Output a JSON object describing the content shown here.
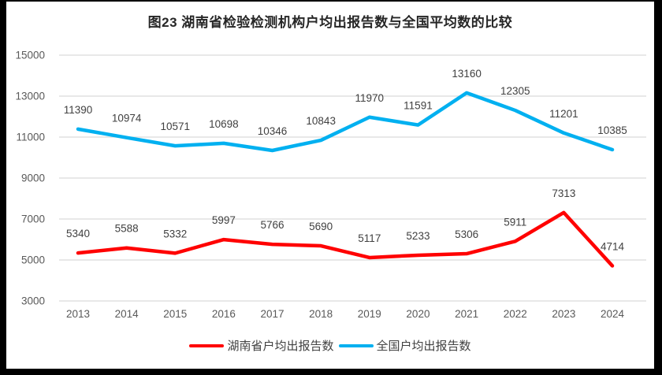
{
  "page": {
    "background_color": "#000000",
    "paper_color": "#ffffff"
  },
  "chart_data": {
    "type": "line",
    "title": "图23  湖南省检验检测机构户均出报告数与全国平均数的比较",
    "categories": [
      "2013",
      "2014",
      "2015",
      "2016",
      "2017",
      "2018",
      "2019",
      "2020",
      "2021",
      "2022",
      "2023",
      "2024"
    ],
    "series": [
      {
        "name": "湖南省户均出报告数",
        "color": "#FF0000",
        "values": [
          5340,
          5588,
          5332,
          5997,
          5766,
          5690,
          5117,
          5233,
          5306,
          5911,
          7313,
          4714
        ]
      },
      {
        "name": "全国户均出报告数",
        "color": "#00B0F0",
        "values": [
          11390,
          10974,
          10571,
          10698,
          10346,
          10843,
          11970,
          11591,
          13160,
          12305,
          11201,
          10385
        ]
      }
    ],
    "xlabel": "",
    "ylabel": "",
    "ylim": [
      3000,
      15000
    ],
    "ytick_step": 2000,
    "yticks": [
      15000,
      13000,
      11000,
      9000,
      7000,
      5000,
      3000
    ],
    "grid": true,
    "gridline_color": "#D9D9D9",
    "axis_label_color": "#595959",
    "data_label_color": "#404040",
    "data_labels_shown": true,
    "legend_position": "bottom"
  }
}
